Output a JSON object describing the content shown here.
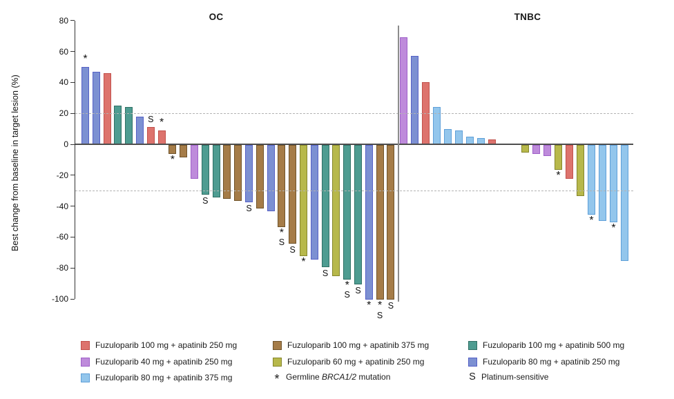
{
  "figure": {
    "y_axis_label": "Best change from baseline in target lesion (%)"
  },
  "arms": {
    "fuz100_apa250": {
      "label": "Fuzuloparib 100 mg + apatinib 250 mg",
      "fill": "#DD736D",
      "border": "#C1504B"
    },
    "fuz40_apa250": {
      "label": "Fuzuloparib 40 mg + apatinib 250 mg",
      "fill": "#BE8BDB",
      "border": "#9E5FC8"
    },
    "fuz80_apa375": {
      "label": "Fuzuloparib 80 mg + apatinib 375 mg",
      "fill": "#93C6EC",
      "border": "#5E9FD8"
    },
    "fuz100_apa375": {
      "label": "Fuzuloparib 100 mg + apatinib 375 mg",
      "fill": "#A57C48",
      "border": "#6F532A"
    },
    "fuz60_apa250": {
      "label": "Fuzuloparib 60 mg + apatinib 250 mg",
      "fill": "#B7B84B",
      "border": "#85862C"
    },
    "fuz100_apa500": {
      "label": "Fuzuloparib 100 mg + apatinib 500 mg",
      "fill": "#4E9C91",
      "border": "#2F6F64"
    },
    "fuz80_apa250": {
      "label": "Fuzuloparib 80 mg + apatinib 250 mg",
      "fill": "#7C90D2",
      "border": "#5560C6"
    }
  },
  "legend": {
    "symbols": {
      "brca": {
        "symbol": "*",
        "prefix": "Germline ",
        "gene": "BRCA1/2",
        "suffix": " mutation"
      },
      "platinum": {
        "symbol": "S",
        "label": "Platinum-sensitive"
      }
    }
  },
  "chart_data": {
    "type": "bar",
    "title": "",
    "ylabel": "Best change from baseline in target lesion (%)",
    "ylim": [
      -100,
      80
    ],
    "yticks": [
      80,
      60,
      40,
      20,
      0,
      -20,
      -40,
      -60,
      -80,
      -100
    ],
    "threshold_lines": [
      20,
      -30
    ],
    "grid": false,
    "legend_position": "bottom",
    "flag_meaning": {
      "*": "Germline BRCA1/2 mutation",
      "S": "Platinum-sensitive"
    },
    "groups": [
      {
        "name": "OC",
        "bars": [
          {
            "value": 50,
            "arm": "fuz80_apa250",
            "flags": [
              "*"
            ]
          },
          {
            "value": 47,
            "arm": "fuz80_apa250",
            "flags": []
          },
          {
            "value": 46,
            "arm": "fuz100_apa250",
            "flags": []
          },
          {
            "value": 25,
            "arm": "fuz100_apa500",
            "flags": []
          },
          {
            "value": 24,
            "arm": "fuz100_apa500",
            "flags": []
          },
          {
            "value": 18,
            "arm": "fuz80_apa250",
            "flags": []
          },
          {
            "value": 11,
            "arm": "fuz100_apa250",
            "flags": [
              "S"
            ]
          },
          {
            "value": 9,
            "arm": "fuz100_apa250",
            "flags": [
              "*"
            ]
          },
          {
            "value": -6,
            "arm": "fuz100_apa375",
            "flags": [
              "*"
            ]
          },
          {
            "value": -8,
            "arm": "fuz100_apa375",
            "flags": []
          },
          {
            "value": -22,
            "arm": "fuz40_apa250",
            "flags": []
          },
          {
            "value": -32,
            "arm": "fuz100_apa500",
            "flags": [
              "S"
            ]
          },
          {
            "value": -34,
            "arm": "fuz100_apa500",
            "flags": []
          },
          {
            "value": -35,
            "arm": "fuz100_apa375",
            "flags": []
          },
          {
            "value": -36,
            "arm": "fuz100_apa375",
            "flags": []
          },
          {
            "value": -37,
            "arm": "fuz80_apa250",
            "flags": [
              "S"
            ]
          },
          {
            "value": -41,
            "arm": "fuz100_apa375",
            "flags": []
          },
          {
            "value": -43,
            "arm": "fuz80_apa250",
            "flags": []
          },
          {
            "value": -53,
            "arm": "fuz100_apa375",
            "flags": [
              "*",
              "S"
            ]
          },
          {
            "value": -64,
            "arm": "fuz100_apa375",
            "flags": [
              "S"
            ]
          },
          {
            "value": -72,
            "arm": "fuz60_apa250",
            "flags": [
              "*"
            ]
          },
          {
            "value": -74,
            "arm": "fuz80_apa250",
            "flags": []
          },
          {
            "value": -79,
            "arm": "fuz100_apa500",
            "flags": [
              "S"
            ]
          },
          {
            "value": -85,
            "arm": "fuz60_apa250",
            "flags": []
          },
          {
            "value": -87,
            "arm": "fuz100_apa500",
            "flags": [
              "*",
              "S"
            ]
          },
          {
            "value": -90,
            "arm": "fuz100_apa500",
            "flags": [
              "S"
            ]
          },
          {
            "value": -100,
            "arm": "fuz80_apa250",
            "flags": [
              "*"
            ]
          },
          {
            "value": -100,
            "arm": "fuz100_apa375",
            "flags": [
              "*",
              "S"
            ]
          },
          {
            "value": -100,
            "arm": "fuz100_apa375",
            "flags": [
              "S"
            ]
          }
        ]
      },
      {
        "name": "TNBC",
        "bars": [
          {
            "value": 69,
            "arm": "fuz40_apa250",
            "flags": []
          },
          {
            "value": 57,
            "arm": "fuz80_apa250",
            "flags": []
          },
          {
            "value": 40,
            "arm": "fuz100_apa250",
            "flags": []
          },
          {
            "value": 24,
            "arm": "fuz80_apa375",
            "flags": []
          },
          {
            "value": 10,
            "arm": "fuz80_apa375",
            "flags": []
          },
          {
            "value": 9,
            "arm": "fuz80_apa375",
            "flags": []
          },
          {
            "value": 5,
            "arm": "fuz80_apa375",
            "flags": []
          },
          {
            "value": 4,
            "arm": "fuz80_apa375",
            "flags": []
          },
          {
            "value": 3,
            "arm": "fuz100_apa250",
            "flags": []
          },
          {
            "value": 0,
            "arm": null,
            "flags": []
          },
          {
            "value": 0,
            "arm": null,
            "flags": []
          },
          {
            "value": -5,
            "arm": "fuz60_apa250",
            "flags": []
          },
          {
            "value": -6,
            "arm": "fuz40_apa250",
            "flags": []
          },
          {
            "value": -7,
            "arm": "fuz40_apa250",
            "flags": []
          },
          {
            "value": -16,
            "arm": "fuz60_apa250",
            "flags": [
              "*"
            ]
          },
          {
            "value": -22,
            "arm": "fuz100_apa250",
            "flags": []
          },
          {
            "value": -33,
            "arm": "fuz60_apa250",
            "flags": []
          },
          {
            "value": -45,
            "arm": "fuz80_apa375",
            "flags": [
              "*"
            ]
          },
          {
            "value": -49,
            "arm": "fuz80_apa375",
            "flags": []
          },
          {
            "value": -50,
            "arm": "fuz80_apa375",
            "flags": [
              "*"
            ]
          },
          {
            "value": -75,
            "arm": "fuz80_apa375",
            "flags": []
          }
        ]
      }
    ]
  }
}
